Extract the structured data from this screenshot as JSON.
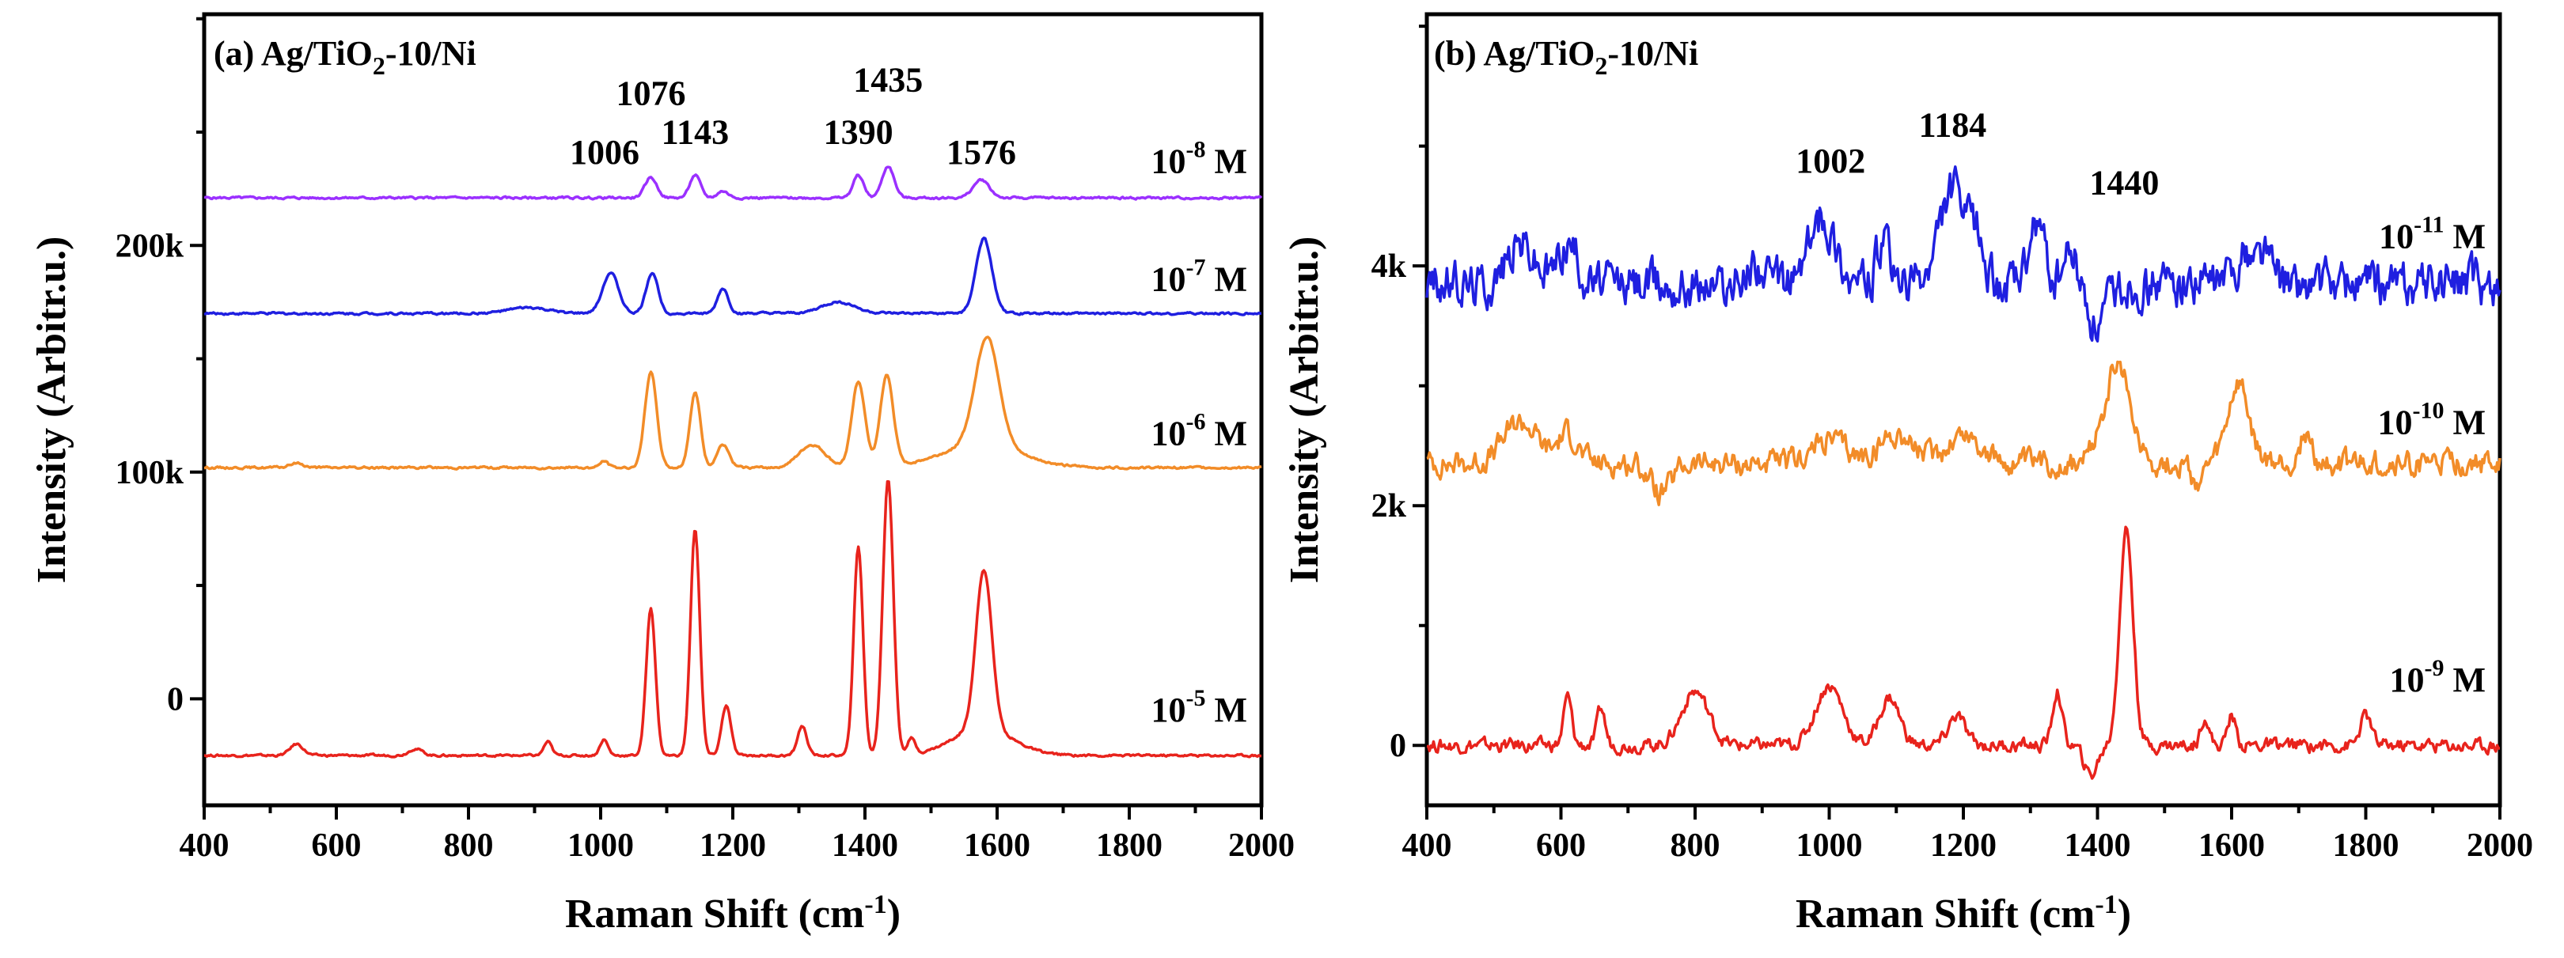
{
  "chart_data": [
    {
      "type": "line",
      "panel": "a",
      "title_main": "(a) Ag/TiO",
      "title_sub": "2",
      "title_tail": "-10/Ni",
      "xlabel_main": "Raman Shift (cm",
      "xlabel_sup": "-1",
      "xlabel_tail": ")",
      "ylabel": "Intensity (Arbitr.u.)",
      "xlim": [
        400,
        2000
      ],
      "ylim": [
        -47000,
        302000
      ],
      "x_ticks": [
        400,
        600,
        800,
        1000,
        1200,
        1400,
        1600,
        1800,
        2000
      ],
      "x_tick_labels": [
        "400",
        "600",
        "800",
        "1000",
        "1200",
        "1400",
        "1600",
        "1800",
        "2000"
      ],
      "y_ticks": [
        0,
        100000,
        200000
      ],
      "y_tick_labels": [
        "0",
        "100k",
        "200k"
      ],
      "series": [
        {
          "name": "10-8 M",
          "label_base": "10",
          "label_exp": "-8",
          "label_unit": " M",
          "color": "#9b30ff",
          "baseline": 221000,
          "peaks": [
            [
              1076,
              9000,
              9
            ],
            [
              1143,
              10000,
              8
            ],
            [
              1185,
              3000,
              8
            ],
            [
              1390,
              10000,
              8
            ],
            [
              1435,
              14000,
              9
            ],
            [
              1576,
              8000,
              12
            ]
          ],
          "label_y": 232000
        },
        {
          "name": "10-7 M",
          "label_base": "10",
          "label_exp": "-7",
          "label_unit": " M",
          "color": "#1f1fe0",
          "baseline": 170000,
          "peaks": [
            [
              890,
              2500,
              30
            ],
            [
              1015,
              18000,
              12
            ],
            [
              1078,
              18000,
              9
            ],
            [
              1185,
              11000,
              8
            ],
            [
              1360,
              5000,
              25
            ],
            [
              1580,
              33000,
              12
            ]
          ],
          "label_y": 180000
        },
        {
          "name": "10-6 M",
          "label_base": "10",
          "label_exp": "-6",
          "label_unit": " M",
          "color": "#f28c28",
          "baseline": 102000,
          "peaks": [
            [
              540,
              2000,
              10
            ],
            [
              1005,
              3000,
              6
            ],
            [
              1076,
              42000,
              9
            ],
            [
              1143,
              33000,
              8
            ],
            [
              1185,
              10000,
              9
            ],
            [
              1320,
              10000,
              20
            ],
            [
              1390,
              38000,
              10
            ],
            [
              1433,
              40000,
              10
            ],
            [
              1585,
              48000,
              18
            ],
            [
              1575,
              10000,
              60
            ]
          ],
          "label_y": 112000
        },
        {
          "name": "10-5 M",
          "label_base": "10",
          "label_exp": "-5",
          "label_unit": " M",
          "color": "#e8231c",
          "baseline": -25000,
          "peaks": [
            [
              540,
              5000,
              10
            ],
            [
              720,
              3000,
              10
            ],
            [
              920,
              6000,
              6
            ],
            [
              1005,
              7000,
              6
            ],
            [
              1076,
              65000,
              7
            ],
            [
              1143,
              100000,
              7
            ],
            [
              1190,
              22000,
              7
            ],
            [
              1305,
              13000,
              7
            ],
            [
              1390,
              92000,
              7
            ],
            [
              1435,
              122000,
              8
            ],
            [
              1470,
              7000,
              6
            ],
            [
              1580,
              70000,
              12
            ],
            [
              1578,
              12000,
              45
            ]
          ],
          "label_y": -10000
        }
      ],
      "annotations": [
        {
          "text": "1006",
          "x": 1006,
          "y": 236000
        },
        {
          "text": "1076",
          "x": 1076,
          "y": 262000
        },
        {
          "text": "1143",
          "x": 1143,
          "y": 245000
        },
        {
          "text": "1390",
          "x": 1390,
          "y": 245000
        },
        {
          "text": "1435",
          "x": 1435,
          "y": 268000
        },
        {
          "text": "1576",
          "x": 1576,
          "y": 236000
        }
      ]
    },
    {
      "type": "line",
      "panel": "b",
      "title_main": "(b) Ag/TiO",
      "title_sub": "2",
      "title_tail": "-10/Ni",
      "xlabel_main": "Raman Shift (cm",
      "xlabel_sup": "-1",
      "xlabel_tail": ")",
      "ylabel": "Intensity (Arbitr.u.)",
      "xlim": [
        400,
        2000
      ],
      "ylim": [
        -500,
        6100
      ],
      "x_ticks": [
        400,
        600,
        800,
        1000,
        1200,
        1400,
        1600,
        1800,
        2000
      ],
      "x_tick_labels": [
        "400",
        "600",
        "800",
        "1000",
        "1200",
        "1400",
        "1600",
        "1800",
        "2000"
      ],
      "y_ticks": [
        0,
        2000,
        4000
      ],
      "y_tick_labels": [
        "0",
        "2k",
        "4k"
      ],
      "series": [
        {
          "name": "10-11 M",
          "label_base": "10",
          "label_exp": "-11",
          "label_unit": " M",
          "color": "#1f1fe0",
          "baseline": 3850,
          "noise": 200,
          "seed": 11,
          "peaks": [
            [
              540,
              350,
              20
            ],
            [
              610,
              350,
              15
            ],
            [
              890,
              200,
              10
            ],
            [
              990,
              550,
              20
            ],
            [
              1080,
              300,
              10
            ],
            [
              1184,
              800,
              18
            ],
            [
              1220,
              400,
              10
            ],
            [
              1310,
              500,
              10
            ],
            [
              1360,
              250,
              10
            ],
            [
              1400,
              -350,
              15
            ],
            [
              1620,
              250,
              15
            ],
            [
              1650,
              250,
              10
            ]
          ],
          "label_y": 4150
        },
        {
          "name": "10-10 M",
          "label_base": "10",
          "label_exp": "-10",
          "label_unit": " M",
          "color": "#f28c28",
          "baseline": 2350,
          "noise": 110,
          "seed": 7,
          "peaks": [
            [
              540,
              350,
              25
            ],
            [
              610,
              250,
              15
            ],
            [
              750,
              -250,
              15
            ],
            [
              1000,
              200,
              25
            ],
            [
              1100,
              250,
              25
            ],
            [
              1200,
              250,
              25
            ],
            [
              1430,
              800,
              20
            ],
            [
              1550,
              -150,
              10
            ],
            [
              1610,
              650,
              15
            ],
            [
              1710,
              250,
              8
            ]
          ],
          "label_y": 2600
        },
        {
          "name": "10-9 M",
          "label_base": "10",
          "label_exp": "-9",
          "label_unit": " M",
          "color": "#e8231c",
          "baseline": 0,
          "noise": 60,
          "seed": 3,
          "peaks": [
            [
              610,
              400,
              6
            ],
            [
              660,
              300,
              6
            ],
            [
              800,
              450,
              20
            ],
            [
              1000,
              500,
              20
            ],
            [
              1090,
              400,
              15
            ],
            [
              1190,
              250,
              12
            ],
            [
              1340,
              450,
              7
            ],
            [
              1390,
              -250,
              10
            ],
            [
              1443,
              1800,
              10
            ],
            [
              1560,
              250,
              6
            ],
            [
              1600,
              250,
              6
            ],
            [
              1800,
              250,
              8
            ]
          ],
          "label_y": 450
        }
      ],
      "annotations": [
        {
          "text": "1002",
          "x": 1002,
          "y": 4780
        },
        {
          "text": "1184",
          "x": 1184,
          "y": 5080
        },
        {
          "text": "1440",
          "x": 1440,
          "y": 4600
        }
      ]
    }
  ]
}
